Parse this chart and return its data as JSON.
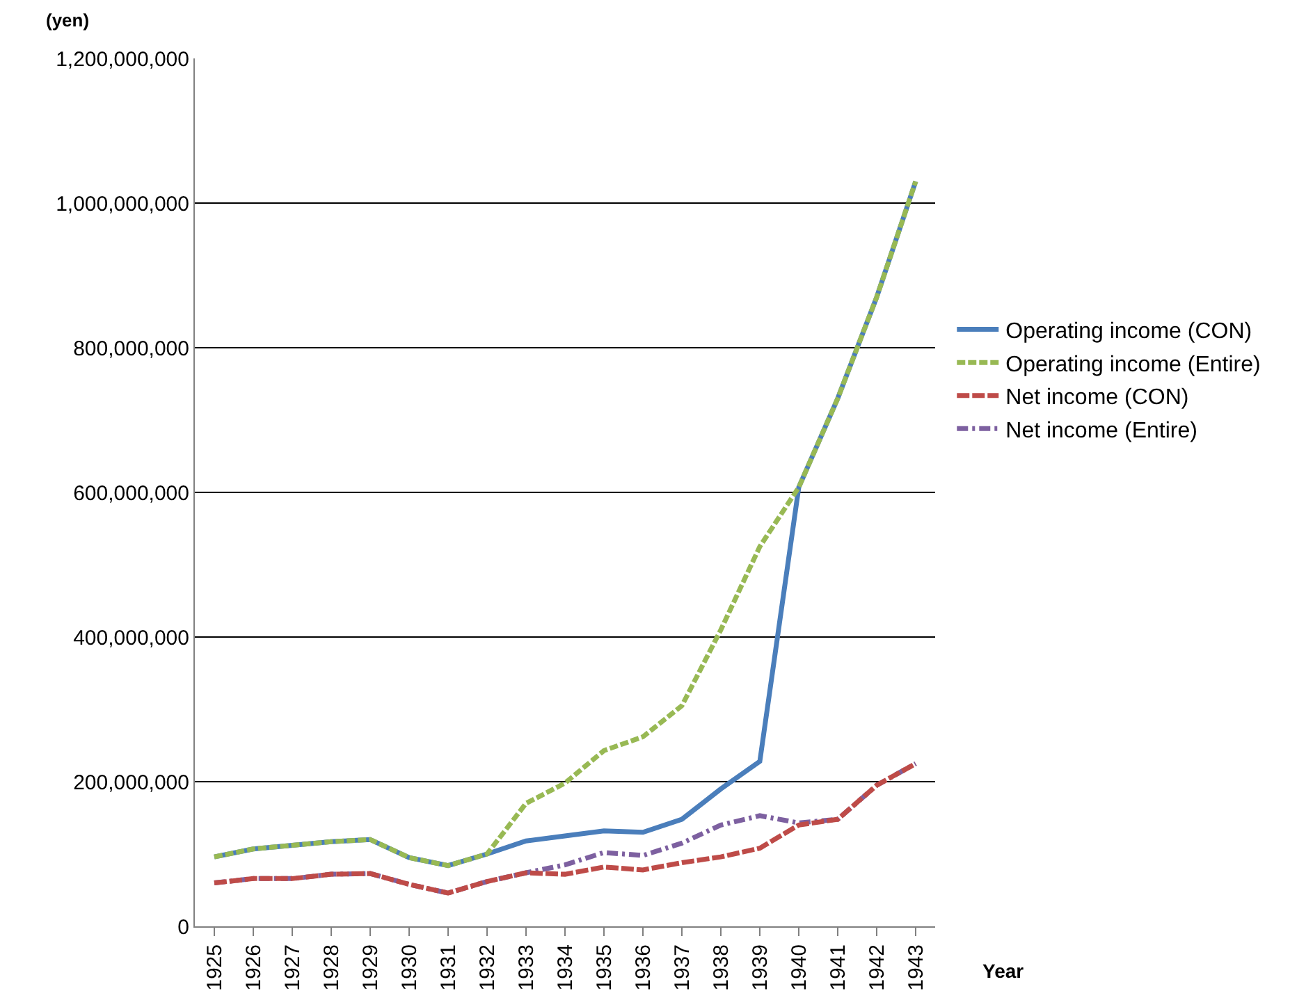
{
  "chart_data": {
    "type": "line",
    "ylabel": "(yen)",
    "xlabel": "Year",
    "categories": [
      "1925",
      "1926",
      "1927",
      "1928",
      "1929",
      "1930",
      "1931",
      "1932",
      "1933",
      "1934",
      "1935",
      "1936",
      "1937",
      "1938",
      "1939",
      "1940",
      "1941",
      "1942",
      "1943"
    ],
    "series": [
      {
        "name": "Operating income (CON)",
        "color": "#4a7ebb",
        "line_style": "solid",
        "values": [
          96000000,
          107000000,
          112000000,
          117000000,
          120000000,
          95000000,
          84000000,
          100000000,
          118000000,
          125000000,
          132000000,
          130000000,
          148000000,
          190000000,
          228000000,
          607000000,
          730000000,
          870000000,
          1030000000
        ]
      },
      {
        "name": "Operating income (Entire)",
        "color": "#98b954",
        "line_style": "dashed",
        "values": [
          96000000,
          107000000,
          112000000,
          117000000,
          120000000,
          95000000,
          84000000,
          100000000,
          170000000,
          198000000,
          243000000,
          262000000,
          305000000,
          410000000,
          525000000,
          607000000,
          730000000,
          870000000,
          1030000000
        ]
      },
      {
        "name": "Net income (CON)",
        "color": "#be4b48",
        "line_style": "longdash",
        "values": [
          60000000,
          66000000,
          66000000,
          72000000,
          73000000,
          58000000,
          46000000,
          62000000,
          74000000,
          72000000,
          82000000,
          78000000,
          88000000,
          96000000,
          108000000,
          140000000,
          148000000,
          195000000,
          225000000
        ]
      },
      {
        "name": "Net income (Entire)",
        "color": "#7d60a0",
        "line_style": "dashdot",
        "values": [
          60000000,
          66000000,
          66000000,
          72000000,
          73000000,
          58000000,
          46000000,
          62000000,
          74000000,
          85000000,
          102000000,
          98000000,
          115000000,
          140000000,
          153000000,
          143000000,
          148000000,
          195000000,
          225000000
        ]
      }
    ],
    "ylim": [
      0,
      1200000000
    ],
    "yticks": [
      {
        "value": 0,
        "label": "0"
      },
      {
        "value": 200000000,
        "label": "200,000,000"
      },
      {
        "value": 400000000,
        "label": "400,000,000"
      },
      {
        "value": 600000000,
        "label": "600,000,000"
      },
      {
        "value": 800000000,
        "label": "800,000,000"
      },
      {
        "value": 1000000000,
        "label": "1,000,000,000"
      },
      {
        "value": 1200000000,
        "label": "1,200,000,000"
      }
    ],
    "grid": "y",
    "legend": "right",
    "marker": "none"
  }
}
